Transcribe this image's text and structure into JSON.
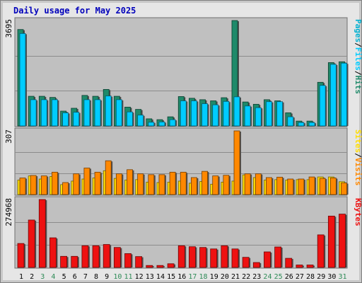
{
  "title": "Daily usage for May 2025",
  "colors": {
    "hits": "#1f8a6a",
    "files": "#00ccff",
    "pages": "#00b0d0",
    "visits": "#ff8800",
    "sites": "#ffdd00",
    "kbytes": "#ee1111",
    "weekend_label": "#2e8b57",
    "weekday_label": "#000000",
    "panel_bg": "#c0c0c0"
  },
  "chart_data": [
    {
      "type": "bar",
      "panel": "hits-files",
      "ymax_label": "3695",
      "ylim": [
        0,
        3695
      ],
      "x": [
        "1",
        "2",
        "3",
        "4",
        "5",
        "6",
        "7",
        "8",
        "9",
        "10",
        "11",
        "12",
        "13",
        "14",
        "15",
        "16",
        "17",
        "18",
        "19",
        "20",
        "21",
        "22",
        "23",
        "24",
        "25",
        "26",
        "27",
        "28",
        "29",
        "30",
        "31"
      ],
      "right_labels": [
        "Pages",
        "Files",
        "Hits"
      ],
      "series": [
        {
          "name": "Hits",
          "values": [
            3380,
            1040,
            1040,
            1000,
            520,
            620,
            1070,
            1040,
            1280,
            1040,
            660,
            580,
            250,
            220,
            320,
            1030,
            970,
            920,
            880,
            990,
            3695,
            840,
            760,
            920,
            880,
            460,
            170,
            170,
            1530,
            2220,
            2250
          ]
        },
        {
          "name": "Files",
          "values": [
            3240,
            920,
            920,
            920,
            460,
            480,
            920,
            920,
            1050,
            920,
            490,
            380,
            130,
            140,
            220,
            880,
            880,
            780,
            740,
            860,
            1020,
            700,
            640,
            850,
            850,
            320,
            120,
            120,
            1420,
            2160,
            2200
          ]
        }
      ]
    },
    {
      "type": "bar",
      "panel": "visits-sites",
      "ymax_label": "307",
      "ylim": [
        0,
        307
      ],
      "x": [
        "1",
        "2",
        "3",
        "4",
        "5",
        "6",
        "7",
        "8",
        "9",
        "10",
        "11",
        "12",
        "13",
        "14",
        "15",
        "16",
        "17",
        "18",
        "19",
        "20",
        "21",
        "22",
        "23",
        "24",
        "25",
        "26",
        "27",
        "28",
        "29",
        "30",
        "31"
      ],
      "right_labels": [
        "Sites",
        "Visits"
      ],
      "series": [
        {
          "name": "Sites",
          "values": [
            70,
            90,
            75,
            87,
            48,
            65,
            75,
            80,
            115,
            78,
            70,
            72,
            60,
            58,
            60,
            65,
            55,
            63,
            50,
            60,
            65,
            95,
            82,
            70,
            72,
            70,
            72,
            72,
            85,
            85,
            62
          ]
        },
        {
          "name": "Visits",
          "values": [
            80,
            92,
            90,
            108,
            58,
            100,
            128,
            108,
            163,
            100,
            120,
            100,
            96,
            96,
            108,
            108,
            82,
            112,
            90,
            93,
            307,
            100,
            100,
            82,
            84,
            75,
            75,
            85,
            78,
            80,
            56
          ]
        }
      ]
    },
    {
      "type": "bar",
      "panel": "kbytes",
      "ymax_label": "274968",
      "ylim": [
        0,
        274968
      ],
      "x": [
        "1",
        "2",
        "3",
        "4",
        "5",
        "6",
        "7",
        "8",
        "9",
        "10",
        "11",
        "12",
        "13",
        "14",
        "15",
        "16",
        "17",
        "18",
        "19",
        "20",
        "21",
        "22",
        "23",
        "24",
        "25",
        "26",
        "27",
        "28",
        "29",
        "30",
        "31"
      ],
      "right_labels": [
        "KBytes"
      ],
      "series": [
        {
          "name": "KBytes",
          "values": [
            97000,
            192000,
            275000,
            120000,
            45000,
            45000,
            88000,
            88000,
            93000,
            81000,
            56000,
            44000,
            8000,
            8000,
            15000,
            88000,
            84000,
            81000,
            75000,
            88000,
            75000,
            41000,
            20000,
            63000,
            83000,
            37000,
            10000,
            10000,
            132000,
            208000,
            216000
          ]
        }
      ]
    }
  ]
}
